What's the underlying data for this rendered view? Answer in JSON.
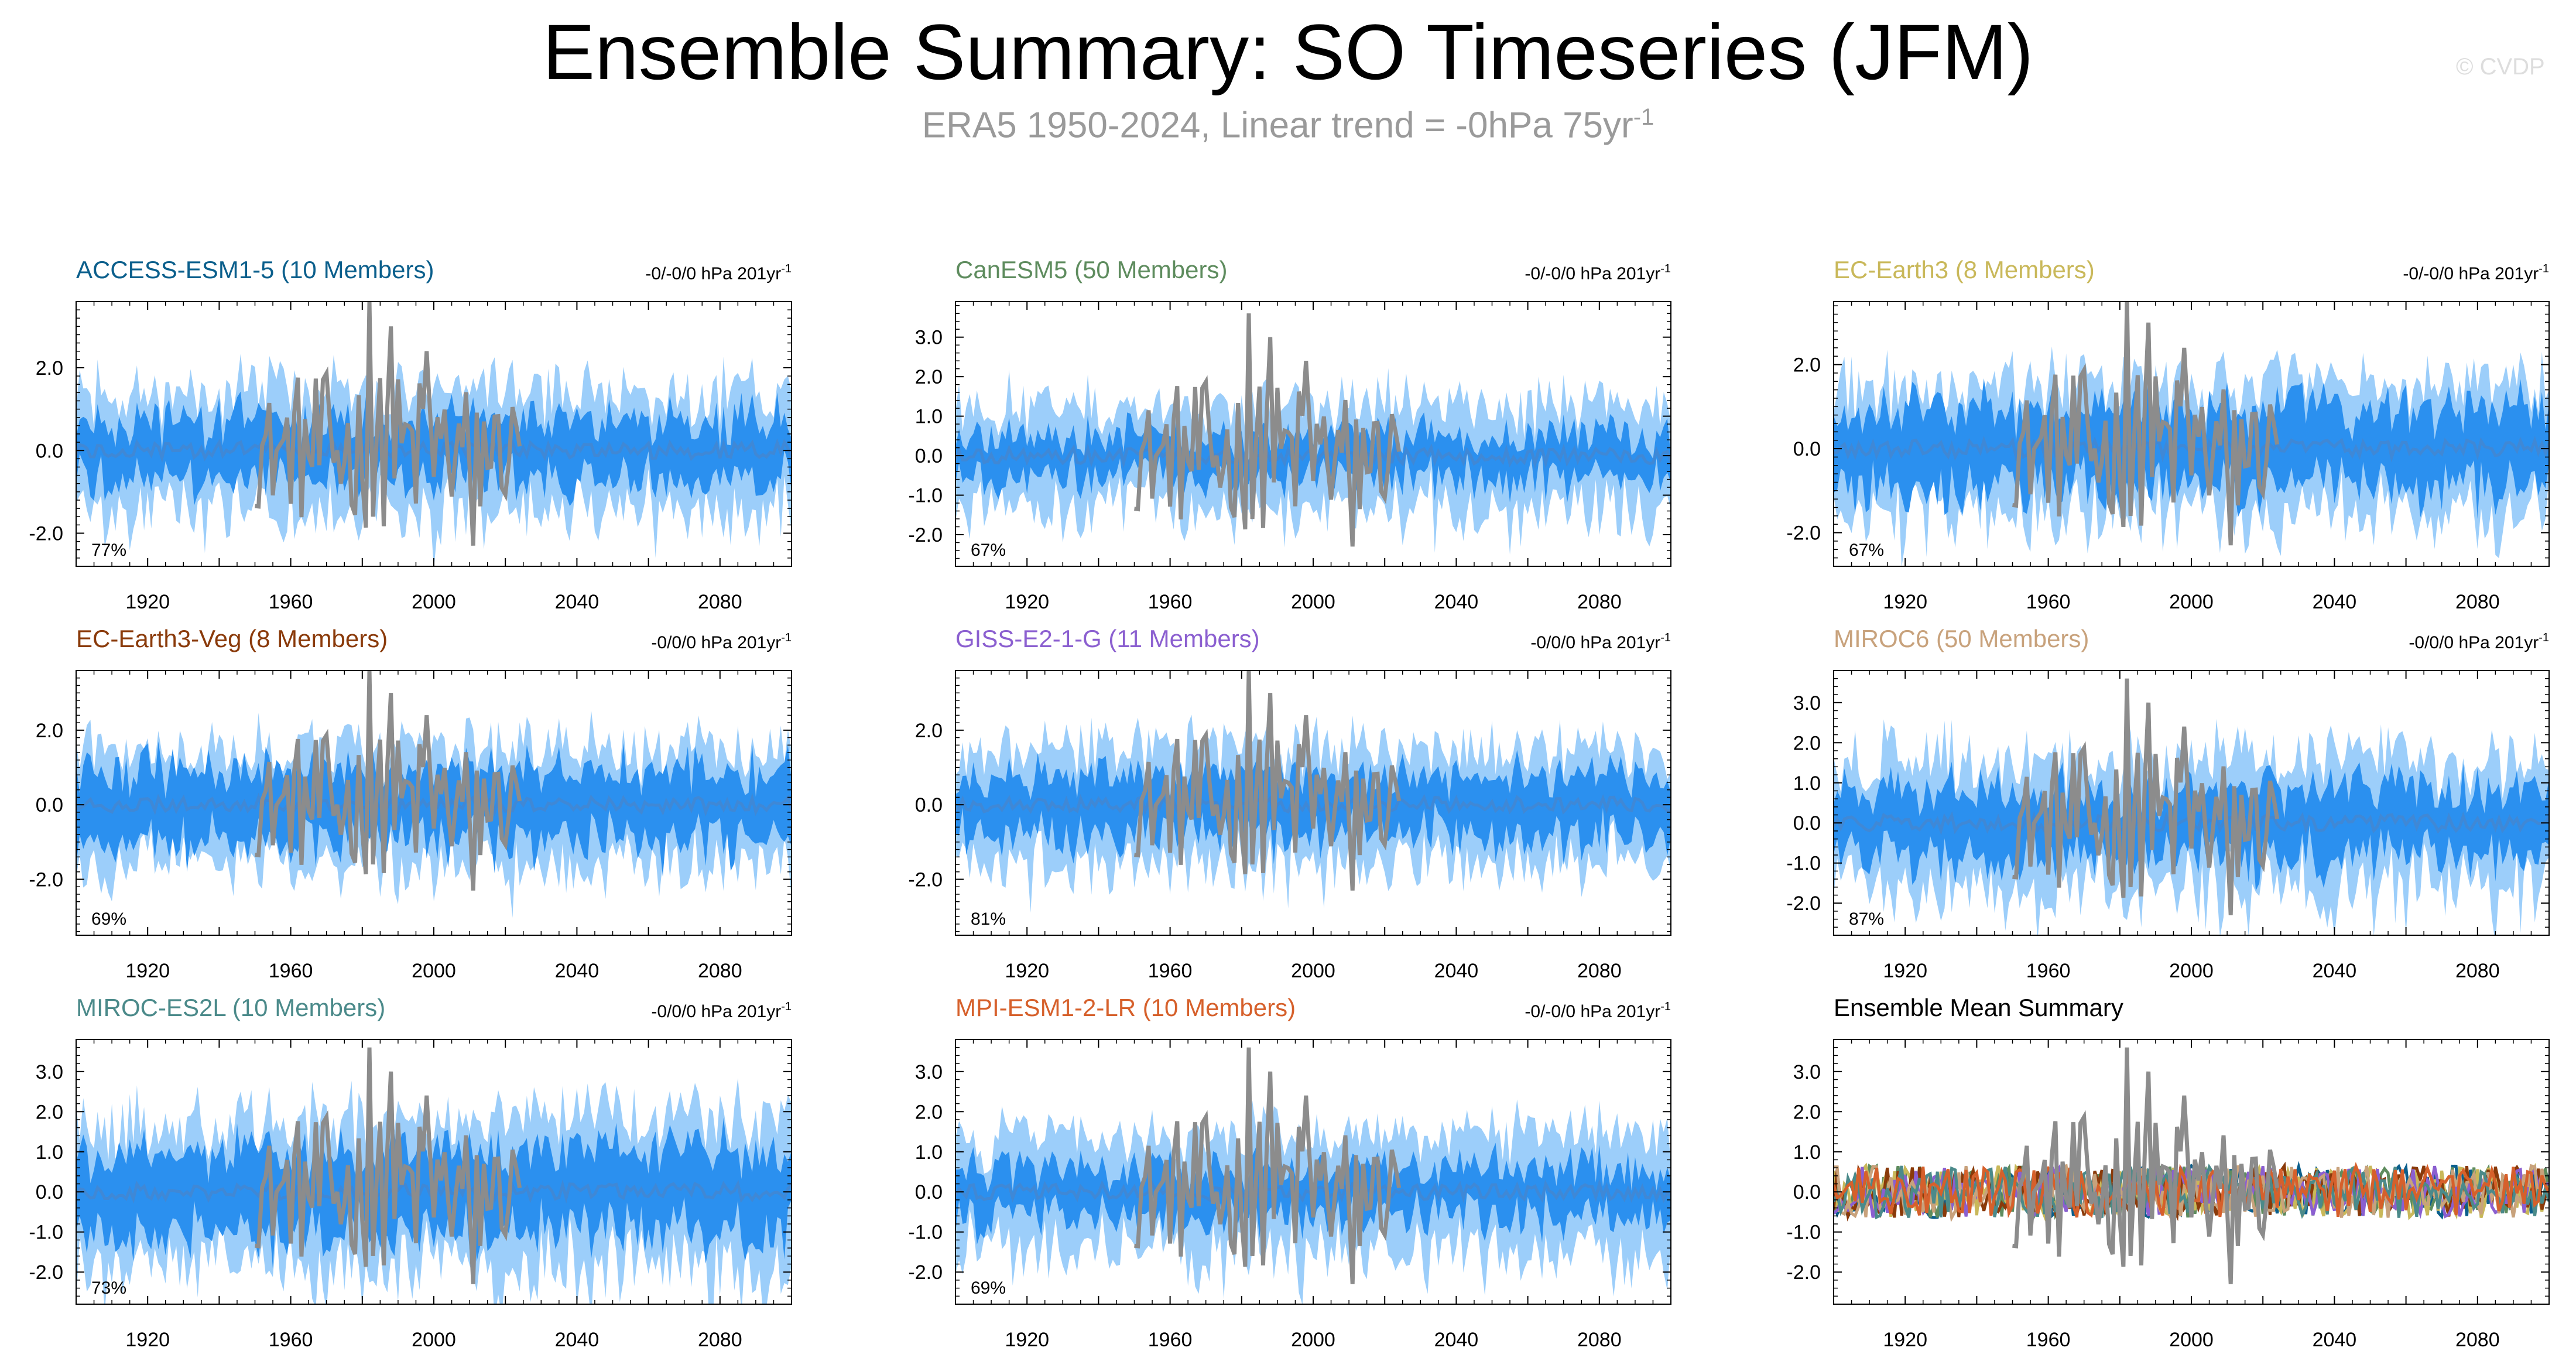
{
  "title": "Ensemble Summary: SO Timeseries (JFM)",
  "subtitle": {
    "text": "ERA5 1950-2024, Linear trend = -0hPa 75yr",
    "superscript": "-1"
  },
  "copyright": "© CVDP",
  "colors": {
    "outer_band": "#9ccefa",
    "inner_band": "#2b90ef",
    "ensemble_mean": "#3f88d6",
    "observations": "#8c8c8c"
  },
  "chart_data": [
    {
      "type": "line",
      "title": "ACCESS-ESM1-5 (10 Members)",
      "title_color": "#0b5f8c",
      "trend": "-0/-0/0 hPa 201yr",
      "trend_superscript": "-1",
      "percent": "77%",
      "xlim": [
        1900,
        2100
      ],
      "ylim": [
        -2.8,
        3.6
      ],
      "yticks": [
        -2.0,
        0.0,
        2.0
      ],
      "ytick_labels": [
        "-2.0",
        "0.0",
        "2.0"
      ],
      "xticks": [
        1920,
        1960,
        2000,
        2040,
        2080
      ],
      "inner": 0.7,
      "outer": 1.4,
      "obs_amp": 1.0,
      "seed": 11
    },
    {
      "type": "line",
      "title": "CanESM5 (50 Members)",
      "title_color": "#5e8c5e",
      "trend": "-0/-0/0 hPa 201yr",
      "trend_superscript": "-1",
      "percent": "67%",
      "xlim": [
        1900,
        2100
      ],
      "ylim": [
        -2.8,
        3.9
      ],
      "yticks": [
        -2.0,
        -1.0,
        0.0,
        1.0,
        2.0,
        3.0
      ],
      "ytick_labels": [
        "-2.0",
        "-1.0",
        "0.0",
        "1.0",
        "2.0",
        "3.0"
      ],
      "xticks": [
        1920,
        1960,
        2000,
        2040,
        2080
      ],
      "inner": 0.5,
      "outer": 1.3,
      "obs_amp": 1.0,
      "seed": 23
    },
    {
      "type": "line",
      "title": "EC-Earth3 (8 Members)",
      "title_color": "#c9b85a",
      "trend": "-0/-0/0 hPa 201yr",
      "trend_superscript": "-1",
      "percent": "67%",
      "xlim": [
        1900,
        2100
      ],
      "ylim": [
        -2.8,
        3.5
      ],
      "yticks": [
        -2.0,
        0.0,
        2.0
      ],
      "ytick_labels": [
        "-2.0",
        "0.0",
        "2.0"
      ],
      "xticks": [
        1920,
        1960,
        2000,
        2040,
        2080
      ],
      "inner": 0.9,
      "outer": 1.5,
      "obs_amp": 1.0,
      "seed": 37
    },
    {
      "type": "line",
      "title": "EC-Earth3-Veg (8 Members)",
      "title_color": "#8a3a0a",
      "trend": "-0/0/0 hPa 201yr",
      "trend_superscript": "-1",
      "percent": "69%",
      "xlim": [
        1900,
        2100
      ],
      "ylim": [
        -3.5,
        3.6
      ],
      "yticks": [
        -2.0,
        0.0,
        2.0
      ],
      "ytick_labels": [
        "-2.0",
        "0.0",
        "2.0"
      ],
      "xticks": [
        1920,
        1960,
        2000,
        2040,
        2080
      ],
      "inner": 0.9,
      "outer": 1.5,
      "obs_amp": 1.0,
      "seed": 41
    },
    {
      "type": "line",
      "title": "GISS-E2-1-G (11 Members)",
      "title_color": "#8b5fd0",
      "trend": "-0/0/0 hPa 201yr",
      "trend_superscript": "-1",
      "percent": "81%",
      "xlim": [
        1900,
        2100
      ],
      "ylim": [
        -3.5,
        3.6
      ],
      "yticks": [
        -2.0,
        0.0,
        2.0
      ],
      "ytick_labels": [
        "-2.0",
        "0.0",
        "2.0"
      ],
      "xticks": [
        1920,
        1960,
        2000,
        2040,
        2080
      ],
      "inner": 0.8,
      "outer": 1.5,
      "obs_amp": 1.0,
      "seed": 53
    },
    {
      "type": "line",
      "title": "MIROC6 (50 Members)",
      "title_color": "#c8a27c",
      "trend": "-0/0/0 hPa 201yr",
      "trend_superscript": "-1",
      "percent": "87%",
      "xlim": [
        1900,
        2100
      ],
      "ylim": [
        -2.8,
        3.8
      ],
      "yticks": [
        -2.0,
        -1.0,
        0.0,
        1.0,
        2.0,
        3.0
      ],
      "ytick_labels": [
        "-2.0",
        "-1.0",
        "0.0",
        "1.0",
        "2.0",
        "3.0"
      ],
      "xticks": [
        1920,
        1960,
        2000,
        2040,
        2080
      ],
      "inner": 0.8,
      "outer": 1.6,
      "obs_amp": 1.0,
      "seed": 67
    },
    {
      "type": "line",
      "title": "MIROC-ES2L (10 Members)",
      "title_color": "#4b8a8a",
      "trend": "-0/0/0 hPa 201yr",
      "trend_superscript": "-1",
      "percent": "73%",
      "xlim": [
        1900,
        2100
      ],
      "ylim": [
        -2.8,
        3.8
      ],
      "yticks": [
        -2.0,
        -1.0,
        0.0,
        1.0,
        2.0,
        3.0
      ],
      "ytick_labels": [
        "-2.0",
        "-1.0",
        "0.0",
        "1.0",
        "2.0",
        "3.0"
      ],
      "xticks": [
        1920,
        1960,
        2000,
        2040,
        2080
      ],
      "inner": 1.0,
      "outer": 1.8,
      "obs_amp": 1.0,
      "seed": 79
    },
    {
      "type": "line",
      "title": "MPI-ESM1-2-LR (10 Members)",
      "title_color": "#d6602b",
      "trend": "-0/-0/0 hPa 201yr",
      "trend_superscript": "-1",
      "percent": "69%",
      "xlim": [
        1900,
        2100
      ],
      "ylim": [
        -2.8,
        3.8
      ],
      "yticks": [
        -2.0,
        -1.0,
        0.0,
        1.0,
        2.0,
        3.0
      ],
      "ytick_labels": [
        "-2.0",
        "-1.0",
        "0.0",
        "1.0",
        "2.0",
        "3.0"
      ],
      "xticks": [
        1920,
        1960,
        2000,
        2040,
        2080
      ],
      "inner": 0.6,
      "outer": 1.4,
      "obs_amp": 1.0,
      "seed": 83
    },
    {
      "type": "line",
      "title": "Ensemble Mean Summary",
      "title_color": "#000000",
      "summary": true,
      "xlim": [
        1900,
        2100
      ],
      "ylim": [
        -2.8,
        3.8
      ],
      "yticks": [
        -2.0,
        -1.0,
        0.0,
        1.0,
        2.0,
        3.0
      ],
      "ytick_labels": [
        "-2.0",
        "-1.0",
        "0.0",
        "1.0",
        "2.0",
        "3.0"
      ],
      "xticks": [
        1920,
        1960,
        2000,
        2040,
        2080
      ],
      "series_colors": [
        "#0b5f8c",
        "#5e8c5e",
        "#c9b85a",
        "#8a3a0a",
        "#8b5fd0",
        "#c8a27c",
        "#4b8a8a",
        "#d6602b"
      ],
      "obs_amp": 1.0,
      "seed": 97
    }
  ]
}
